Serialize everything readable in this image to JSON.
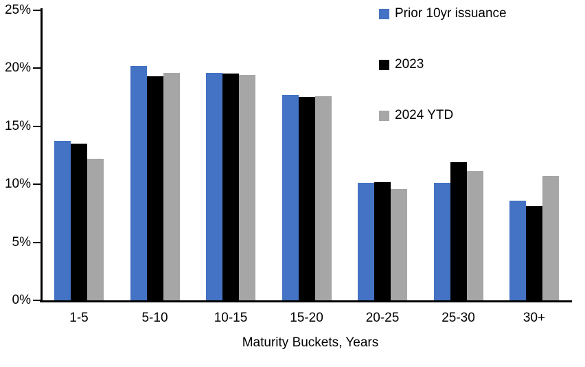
{
  "chart_data": {
    "type": "bar",
    "title": "",
    "xlabel": "Maturity Buckets, Years",
    "ylabel": "",
    "ylim": [
      0,
      25
    ],
    "yticks": [
      "0%",
      "5%",
      "10%",
      "15%",
      "20%",
      "25%"
    ],
    "ytick_values": [
      0,
      5,
      10,
      15,
      20,
      25
    ],
    "grid": false,
    "legend_position": "top-right",
    "categories": [
      "1-5",
      "5-10",
      "10-15",
      "15-20",
      "20-25",
      "25-30",
      "30+"
    ],
    "series": [
      {
        "name": "Prior 10yr issuance",
        "color": "#4472C4",
        "values": [
          13.7,
          20.2,
          19.6,
          17.7,
          10.1,
          10.1,
          8.6
        ]
      },
      {
        "name": "2023",
        "color": "#000000",
        "values": [
          13.5,
          19.3,
          19.5,
          17.5,
          10.2,
          11.9,
          8.1
        ]
      },
      {
        "name": "2024 YTD",
        "color": "#A6A6A6",
        "values": [
          12.2,
          19.6,
          19.4,
          17.6,
          9.6,
          11.1,
          10.7
        ]
      }
    ]
  },
  "colors": {
    "axis": "#000000",
    "background": "#FFFFFF"
  }
}
